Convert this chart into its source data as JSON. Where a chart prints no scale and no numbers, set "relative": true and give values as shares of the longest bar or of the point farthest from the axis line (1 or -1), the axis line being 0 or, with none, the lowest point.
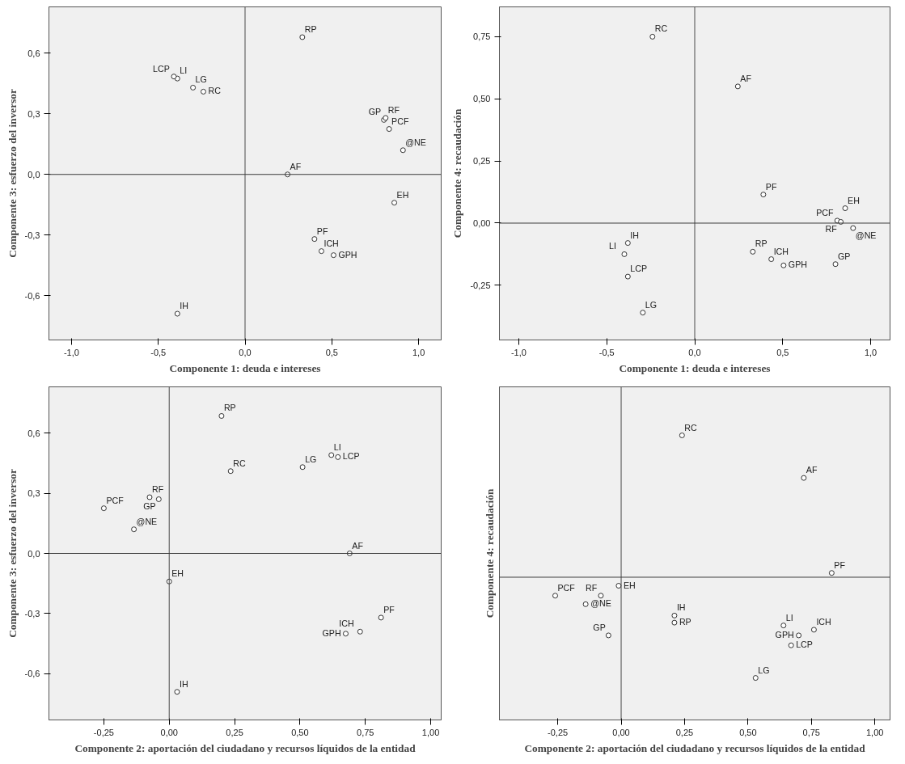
{
  "chart_data": [
    {
      "type": "scatter",
      "xlabel": "Componente 1: deuda e intereses",
      "ylabel": "Componente 3: esfuerzo del inversor",
      "marker": "circle",
      "grid": false,
      "xlim": [
        -1.13,
        1.13
      ],
      "ylim": [
        -0.82,
        0.83
      ],
      "xticks": [
        {
          "value": -1.0,
          "label": "-1,0"
        },
        {
          "value": -0.5,
          "label": "-0,5"
        },
        {
          "value": 0,
          "label": "0,0"
        },
        {
          "value": 0.5,
          "label": "0,5"
        },
        {
          "value": 1.0,
          "label": "1,0"
        }
      ],
      "yticks": [
        {
          "value": -0.6,
          "label": "-0,6"
        },
        {
          "value": -0.3,
          "label": "-0,3"
        },
        {
          "value": 0,
          "label": "0,0"
        },
        {
          "value": 0.3,
          "label": "0,3"
        },
        {
          "value": 0.6,
          "label": "0,6"
        }
      ],
      "ref_lines": [
        {
          "axis": "x",
          "value": 0,
          "color": "#4a4a4a"
        },
        {
          "axis": "y",
          "value": 0,
          "color": "#3a3a3a"
        }
      ],
      "series": [
        {
          "color": "#333333",
          "x": [
            0.33,
            -0.39,
            -0.41,
            -0.3,
            -0.24,
            0.8,
            0.81,
            0.83,
            0.91,
            0.245,
            0.86,
            0.4,
            0.44,
            0.51,
            -0.39
          ],
          "values": [
            0.68,
            0.475,
            0.485,
            0.43,
            0.41,
            0.27,
            0.28,
            0.225,
            0.12,
            0.0,
            -0.14,
            -0.32,
            -0.38,
            -0.4,
            -0.69
          ]
        }
      ],
      "annotations": [
        {
          "text": "RP",
          "x": 0.33,
          "y": 0.68
        },
        {
          "text": "LI",
          "x": -0.39,
          "y": 0.475
        },
        {
          "text": "LCP",
          "x": -0.41,
          "y": 0.485
        },
        {
          "text": "LG",
          "x": -0.3,
          "y": 0.43
        },
        {
          "text": "RC",
          "x": -0.24,
          "y": 0.41
        },
        {
          "text": "GP",
          "x": 0.8,
          "y": 0.27
        },
        {
          "text": "RF",
          "x": 0.81,
          "y": 0.28
        },
        {
          "text": "PCF",
          "x": 0.83,
          "y": 0.225
        },
        {
          "text": "@NE",
          "x": 0.91,
          "y": 0.12
        },
        {
          "text": "AF",
          "x": 0.245,
          "y": 0.0
        },
        {
          "text": "EH",
          "x": 0.86,
          "y": -0.14
        },
        {
          "text": "PF",
          "x": 0.4,
          "y": -0.32
        },
        {
          "text": "ICH",
          "x": 0.44,
          "y": -0.38
        },
        {
          "text": "GPH",
          "x": 0.51,
          "y": -0.4
        },
        {
          "text": "IH",
          "x": -0.39,
          "y": -0.69
        }
      ]
    },
    {
      "type": "scatter",
      "xlabel": "Componente 1: deuda e intereses",
      "ylabel": "Componente 4: recaudación",
      "marker": "circle",
      "grid": false,
      "xlim": [
        -1.11,
        1.11
      ],
      "ylim": [
        -0.47,
        0.87
      ],
      "xticks": [
        {
          "value": -1.0,
          "label": "-1,0"
        },
        {
          "value": -0.5,
          "label": "-0,5"
        },
        {
          "value": 0,
          "label": "0,0"
        },
        {
          "value": 0.5,
          "label": "0,5"
        },
        {
          "value": 1.0,
          "label": "1,0"
        }
      ],
      "yticks": [
        {
          "value": -0.25,
          "label": "-0,25"
        },
        {
          "value": 0,
          "label": "0,00"
        },
        {
          "value": 0.25,
          "label": "0,25"
        },
        {
          "value": 0.5,
          "label": "0,50"
        },
        {
          "value": 0.75,
          "label": "0,75"
        }
      ],
      "ref_lines": [
        {
          "axis": "x",
          "value": 0,
          "color": "#4a4a4a"
        },
        {
          "axis": "y",
          "value": 0,
          "color": "#3a3a3a"
        }
      ],
      "series": [
        {
          "color": "#333333",
          "x": [
            -0.24,
            0.245,
            0.39,
            0.855,
            0.81,
            0.83,
            0.9,
            0.8,
            0.33,
            0.435,
            0.505,
            -0.38,
            -0.4,
            -0.38,
            -0.295
          ],
          "values": [
            0.75,
            0.55,
            0.115,
            0.06,
            0.01,
            0.005,
            -0.02,
            -0.165,
            -0.115,
            -0.145,
            -0.17,
            -0.08,
            -0.125,
            -0.215,
            -0.36
          ]
        }
      ],
      "annotations": [
        {
          "text": "RC",
          "x": -0.24,
          "y": 0.75
        },
        {
          "text": "AF",
          "x": 0.245,
          "y": 0.55
        },
        {
          "text": "PF",
          "x": 0.39,
          "y": 0.115
        },
        {
          "text": "EH",
          "x": 0.855,
          "y": 0.06
        },
        {
          "text": "PCF",
          "x": 0.81,
          "y": 0.01
        },
        {
          "text": "RF",
          "x": 0.83,
          "y": 0.005
        },
        {
          "text": "@NE",
          "x": 0.9,
          "y": -0.02
        },
        {
          "text": "GP",
          "x": 0.8,
          "y": -0.165
        },
        {
          "text": "RP",
          "x": 0.33,
          "y": -0.115
        },
        {
          "text": "ICH",
          "x": 0.435,
          "y": -0.145
        },
        {
          "text": "GPH",
          "x": 0.505,
          "y": -0.17
        },
        {
          "text": "IH",
          "x": -0.38,
          "y": -0.08
        },
        {
          "text": "LI",
          "x": -0.4,
          "y": -0.125
        },
        {
          "text": "LCP",
          "x": -0.38,
          "y": -0.215
        },
        {
          "text": "LG",
          "x": -0.295,
          "y": -0.36
        }
      ]
    },
    {
      "type": "scatter",
      "xlabel": "Componente 2: aportación del ciudadano y recursos líquidos de la entidad",
      "ylabel": "Componente 3: esfuerzo del inversor",
      "marker": "circle",
      "grid": false,
      "xlim": [
        -0.46,
        1.04
      ],
      "ylim": [
        -0.83,
        0.83
      ],
      "xticks": [
        {
          "value": -0.25,
          "label": "-0,25"
        },
        {
          "value": 0,
          "label": "0,00"
        },
        {
          "value": 0.25,
          "label": "0,25"
        },
        {
          "value": 0.5,
          "label": "0,50"
        },
        {
          "value": 0.75,
          "label": "0,75"
        },
        {
          "value": 1.0,
          "label": "1,00"
        }
      ],
      "yticks": [
        {
          "value": -0.6,
          "label": "-0,6"
        },
        {
          "value": -0.3,
          "label": "-0,3"
        },
        {
          "value": 0,
          "label": "0,0"
        },
        {
          "value": 0.3,
          "label": "0,3"
        },
        {
          "value": 0.6,
          "label": "0,6"
        }
      ],
      "ref_lines": [
        {
          "axis": "x",
          "value": 0,
          "color": "#4a4a4a"
        },
        {
          "axis": "y",
          "value": 0,
          "color": "#3a3a3a"
        }
      ],
      "series": [
        {
          "color": "#333333",
          "x": [
            0.2,
            0.235,
            0.51,
            0.62,
            0.645,
            -0.25,
            -0.075,
            -0.04,
            -0.135,
            0.69,
            0.0,
            0.81,
            0.73,
            0.675,
            0.03
          ],
          "values": [
            0.685,
            0.41,
            0.43,
            0.49,
            0.48,
            0.225,
            0.28,
            0.27,
            0.12,
            0.0,
            -0.14,
            -0.32,
            -0.39,
            -0.4,
            -0.69
          ]
        }
      ],
      "annotations": [
        {
          "text": "RP",
          "x": 0.2,
          "y": 0.685
        },
        {
          "text": "RC",
          "x": 0.235,
          "y": 0.41
        },
        {
          "text": "LG",
          "x": 0.51,
          "y": 0.43
        },
        {
          "text": "LI",
          "x": 0.62,
          "y": 0.49
        },
        {
          "text": "LCP",
          "x": 0.645,
          "y": 0.48
        },
        {
          "text": "PCF",
          "x": -0.25,
          "y": 0.225
        },
        {
          "text": "RF",
          "x": -0.075,
          "y": 0.28
        },
        {
          "text": "GP",
          "x": -0.04,
          "y": 0.27
        },
        {
          "text": "@NE",
          "x": -0.135,
          "y": 0.12
        },
        {
          "text": "AF",
          "x": 0.69,
          "y": 0.0
        },
        {
          "text": "EH",
          "x": 0.0,
          "y": -0.14
        },
        {
          "text": "PF",
          "x": 0.81,
          "y": -0.32
        },
        {
          "text": "ICH",
          "x": 0.73,
          "y": -0.39
        },
        {
          "text": "GPH",
          "x": 0.675,
          "y": -0.4
        },
        {
          "text": "IH",
          "x": 0.03,
          "y": -0.69
        }
      ]
    },
    {
      "type": "scatter",
      "xlabel": "Componente 2: aportación del ciudadano y recursos líquidos de la entidad",
      "ylabel": "Componente 4: recaudación",
      "marker": "circle",
      "grid": false,
      "relative": true,
      "tick_labels": "x",
      "xlim": [
        -0.48,
        1.06
      ],
      "xticks": [
        {
          "value": -0.25,
          "label": "-0,25"
        },
        {
          "value": 0,
          "label": "0,00"
        },
        {
          "value": 0.25,
          "label": "0,25"
        },
        {
          "value": 0.5,
          "label": "0,50"
        },
        {
          "value": 0.75,
          "label": "0,75"
        },
        {
          "value": 1.0,
          "label": "1,00"
        }
      ],
      "ref_lines": [
        {
          "axis": "x",
          "value": 0,
          "color": "#4a4a4a"
        },
        {
          "axis": "y",
          "value": 0,
          "color": "#3a3a3a"
        }
      ],
      "series": [
        {
          "color": "#333333",
          "x": [
            0.24,
            0.72,
            0.83,
            -0.01,
            -0.26,
            -0.08,
            -0.14,
            0.21,
            0.21,
            -0.05,
            0.64,
            0.76,
            0.7,
            0.67,
            0.53
          ],
          "values": [
            1.0,
            0.7,
            0.03,
            -0.06,
            -0.13,
            -0.13,
            -0.19,
            -0.27,
            -0.32,
            -0.41,
            -0.34,
            -0.37,
            -0.41,
            -0.48,
            -0.71
          ]
        }
      ],
      "annotations": [
        {
          "text": "RC",
          "x": 0.24,
          "y": 1.0
        },
        {
          "text": "AF",
          "x": 0.72,
          "y": 0.7
        },
        {
          "text": "PF",
          "x": 0.83,
          "y": 0.03
        },
        {
          "text": "EH",
          "x": -0.01,
          "y": -0.06
        },
        {
          "text": "PCF",
          "x": -0.26,
          "y": -0.13
        },
        {
          "text": "RF",
          "x": -0.08,
          "y": -0.13
        },
        {
          "text": "@NE",
          "x": -0.14,
          "y": -0.19
        },
        {
          "text": "IH",
          "x": 0.21,
          "y": -0.27
        },
        {
          "text": "RP",
          "x": 0.21,
          "y": -0.32
        },
        {
          "text": "GP",
          "x": -0.05,
          "y": -0.41
        },
        {
          "text": "LI",
          "x": 0.64,
          "y": -0.34
        },
        {
          "text": "ICH",
          "x": 0.76,
          "y": -0.37
        },
        {
          "text": "GPH",
          "x": 0.7,
          "y": -0.41
        },
        {
          "text": "LCP",
          "x": 0.67,
          "y": -0.48
        },
        {
          "text": "LG",
          "x": 0.53,
          "y": -0.71
        }
      ]
    }
  ]
}
